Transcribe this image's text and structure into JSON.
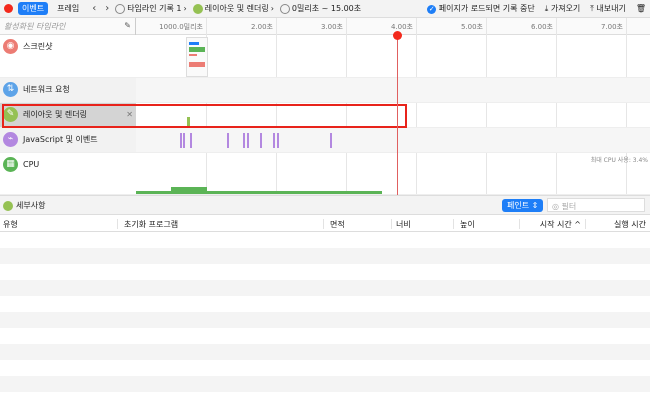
{
  "toolbar": {
    "tabs": [
      {
        "label": "이벤트",
        "selected": true
      },
      {
        "label": "프레임",
        "selected": false
      }
    ],
    "breadcrumb": [
      "타임라인 기록 1",
      "레이아웃 및 렌더링",
      "0밀리초 ~ 15.00초"
    ],
    "stop_on_load": {
      "label": "페이지가 로드되면 기록 중단",
      "checked": true
    },
    "import_label": "가져오기",
    "export_label": "내보내기"
  },
  "timeline": {
    "filter_placeholder": "활성화된 타임라인",
    "ticks": [
      "1000.0밀리초",
      "2.00초",
      "3.00초",
      "4.00초",
      "5.00초",
      "6.00초",
      "7.00초"
    ],
    "playhead_seconds": 3.73,
    "tracks": [
      {
        "label": "스크린샷",
        "color": "#ec7c74"
      },
      {
        "label": "네트워크 요청",
        "color": "#5da3e8"
      },
      {
        "label": "레이아웃 및 렌더링",
        "color": "#95c153",
        "selected": true
      },
      {
        "label": "JavaScript 및 이벤트",
        "color": "#b388e0"
      },
      {
        "label": "CPU",
        "color": "#5bb456"
      }
    ],
    "js_events_seconds": [
      0.63,
      0.67,
      0.77,
      1.3,
      1.53,
      1.59,
      1.77,
      1.95,
      2.01,
      2.77
    ],
    "layout_events_seconds": [
      0.73
    ],
    "cpu_max_label": "최대 CPU 사용: 3.4%"
  },
  "details": {
    "title": "세부사항",
    "mode": "페인트",
    "filter_placeholder": "필터",
    "columns": [
      "유형",
      "초기화 프로그램",
      "면적",
      "너비",
      "높이",
      "시작 시간 ^",
      "실행 시간"
    ]
  }
}
